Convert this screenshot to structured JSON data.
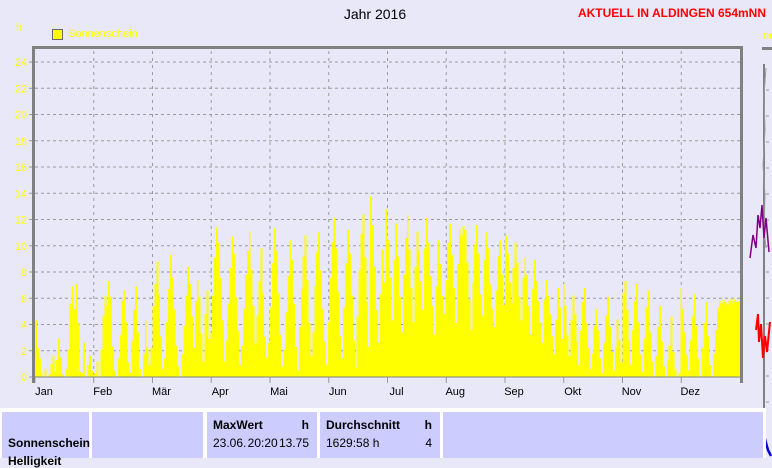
{
  "header": {
    "title": "Jahr 2016",
    "banner": "AKTUELL IN ALDINGEN 654mNN"
  },
  "legend": {
    "label": "Sonnenschein"
  },
  "y_unit": "h",
  "colors": {
    "background": "#e8e8f8",
    "bar": "#ffff00",
    "accent_yellow": "#ffff00",
    "banner_red": "#ff0000",
    "grid": "#9a9a9a",
    "border": "#808080",
    "table_cell": "#ccccff",
    "frag_purple": "#800080",
    "frag_red": "#ff0000",
    "frag_blue": "#0000dd"
  },
  "chart_data": {
    "type": "bar",
    "title": "Jahr 2016",
    "ylabel": "h",
    "ylim": [
      0,
      24
    ],
    "yticks": [
      0,
      2,
      4,
      6,
      8,
      10,
      12,
      14,
      16,
      18,
      20,
      22,
      24
    ],
    "grid": "dashed",
    "legend_position": "top-left",
    "categories": [
      "Jan",
      "Feb",
      "Mär",
      "Apr",
      "Mai",
      "Jun",
      "Jul",
      "Aug",
      "Sep",
      "Okt",
      "Nov",
      "Dez"
    ],
    "series": [
      {
        "name": "Sonnenschein",
        "unit": "h",
        "monthly_values": [
          [
            4.3,
            2.2,
            1.4,
            0.3,
            0,
            0.6,
            0,
            0.2,
            1,
            1.6,
            0.4,
            1.3,
            2.9,
            1.5,
            0.2,
            0,
            0.6,
            2.1,
            5.6,
            6.9,
            5.2,
            7.1,
            4.1,
            0.4,
            0.3,
            2.6,
            0,
            0.9,
            1.6,
            0.5,
            0.2
          ],
          [
            0.3,
            1.2,
            0,
            2.1,
            4.7,
            6.2,
            5.4,
            7.3,
            6.1,
            2.3,
            0.5,
            0,
            1.4,
            3.2,
            5.8,
            6.6,
            4.2,
            1.1,
            0.3,
            2.7,
            5.1,
            6.9,
            3.4,
            0.6,
            0,
            1.8,
            4.3,
            2.2,
            0.9
          ],
          [
            2.2,
            5.4,
            7.1,
            8.8,
            6.3,
            3.1,
            0.6,
            1.4,
            4.2,
            6.7,
            9.3,
            7.6,
            5.2,
            2.4,
            0.8,
            0,
            1.7,
            3.9,
            6.2,
            8.4,
            7.1,
            4.6,
            2.2,
            5.8,
            7.4,
            6.1,
            3.3,
            1.2,
            4.8,
            6.6,
            2.9
          ],
          [
            3.4,
            6.2,
            9.1,
            11.4,
            10.2,
            7.6,
            4.3,
            1.2,
            2.8,
            5.6,
            8.3,
            10.7,
            9.4,
            6.1,
            3.5,
            0.9,
            2.4,
            5.2,
            7.8,
            9.6,
            11.1,
            8.2,
            5.4,
            2.6,
            4.7,
            7.3,
            9.8,
            6.4,
            3.1,
            1.5
          ],
          [
            2.6,
            5.3,
            8.7,
            11.3,
            9.6,
            6.4,
            3.2,
            0.8,
            2.1,
            4.9,
            7.7,
            10.4,
            8.9,
            5.6,
            2.3,
            0.5,
            3.8,
            6.7,
            9.2,
            10.8,
            7.4,
            4.1,
            1.6,
            3.4,
            6.9,
            9.5,
            11.0,
            8.1,
            5.2,
            2.7,
            0.9
          ],
          [
            4.2,
            7.6,
            10.3,
            12.1,
            9.8,
            6.5,
            3.1,
            1.4,
            5.3,
            8.7,
            11.2,
            9.4,
            6.2,
            2.8,
            0.7,
            4.6,
            8.1,
            10.9,
            12.4,
            9.1,
            5.7,
            2.3,
            13.75,
            11.6,
            8.4,
            5.1,
            2.6,
            6.3,
            9.7,
            7.2
          ],
          [
            12.8,
            10.4,
            7.6,
            4.3,
            8.9,
            11.7,
            9.2,
            6.1,
            3.4,
            7.8,
            10.6,
            12.3,
            9.7,
            6.8,
            4.2,
            8.4,
            11.1,
            9.6,
            7.3,
            5.1,
            9.8,
            12.1,
            10.2,
            7.7,
            5.4,
            3.2,
            6.9,
            10.4,
            8.6,
            6.2,
            4.8
          ],
          [
            7.4,
            10.2,
            11.7,
            9.3,
            6.8,
            4.1,
            8.6,
            11.3,
            10.8,
            11.5,
            11.2,
            8.7,
            5.9,
            3.6,
            7.2,
            10.1,
            11.6,
            9.4,
            6.3,
            4.7,
            8.9,
            11.0,
            9.8,
            7.1,
            5.2,
            3.8,
            6.6,
            9.2,
            10.4,
            7.8,
            5.5
          ],
          [
            10.8,
            9.4,
            7.2,
            5.6,
            8.3,
            10.2,
            8.7,
            6.1,
            4.3,
            7.6,
            9.1,
            7.8,
            5.4,
            3.2,
            6.7,
            8.9,
            7.3,
            5.8,
            4.1,
            2.6,
            5.9,
            7.4,
            6.2,
            4.8,
            3.1,
            1.7,
            4.4,
            6.8,
            5.3,
            2.9
          ],
          [
            7.1,
            5.4,
            3.2,
            1.6,
            4.3,
            6.2,
            4.8,
            2.7,
            0.9,
            3.5,
            5.7,
            6.8,
            4.1,
            2.2,
            0.6,
            1.8,
            3.9,
            5.2,
            3.6,
            1.4,
            0.3,
            2.6,
            4.7,
            6.1,
            3.8,
            1.9,
            0.5,
            2.3,
            4.4,
            2.8,
            1.1
          ],
          [
            6.4,
            7.3,
            5.1,
            2.8,
            0.9,
            3.6,
            5.8,
            7.1,
            4.2,
            1.7,
            0.4,
            2.9,
            5.3,
            6.6,
            3.4,
            1.2,
            0,
            1.6,
            3.8,
            5.4,
            2.7,
            0.8,
            0,
            1.3,
            2.4,
            4.6,
            1.9,
            0.6,
            0,
            0.3
          ],
          [
            6.8,
            5.2,
            3.4,
            1.7,
            0.5,
            2.8,
            4.6,
            6.3,
            3.9,
            1.4,
            0,
            2.2,
            4.1,
            5.7,
            3.1,
            0.9,
            0,
            1.8,
            3.6,
            5.3,
            5.8,
            5.6,
            5.9,
            5.7,
            5.5,
            5.8,
            6.0,
            5.6,
            5.9,
            5.7,
            5.8
          ]
        ]
      }
    ]
  },
  "stats_table": {
    "row_label_1": "Sonnenschein",
    "row_label_2": "Helligkeit",
    "maxwert": {
      "header": "MaxWert",
      "unit": "h",
      "date": "23.06.",
      "time": "20:20",
      "value": "13.75"
    },
    "durchschnitt": {
      "header": "Durchschnitt",
      "unit": "h",
      "total": "1629:58 h",
      "value": "4"
    }
  },
  "right_fragment": {
    "legend_fragment": "ne"
  }
}
